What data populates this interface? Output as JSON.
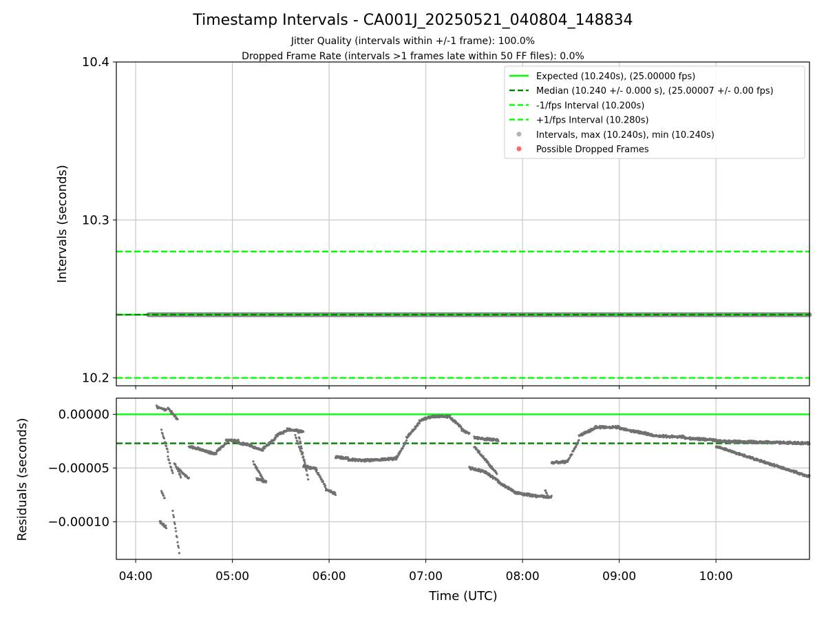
{
  "chart_data": [
    {
      "type": "line",
      "title": "Timestamp Intervals - CA001J_20250521_040804_148834",
      "subtitle_lines": [
        "Jitter Quality (intervals within +/-1 frame): 100.0%",
        "Dropped Frame Rate (intervals >1 frames late within 50 FF files): 0.0%"
      ],
      "ylabel": "Intervals (seconds)",
      "ylim": [
        10.195,
        10.4
      ],
      "yticks": [
        "10.2",
        "10.3",
        "10.4"
      ],
      "ytick_values": [
        10.2,
        10.3,
        10.4
      ],
      "grid": true,
      "legend_position": "top-right",
      "legend": [
        {
          "label": "Expected (10.240s), (25.00000 fps)",
          "style": "solid",
          "color": "#00ff00"
        },
        {
          "label": "Median (10.240 +/- 0.000 s), (25.00007 +/- 0.00 fps)",
          "style": "dashed",
          "color": "#008000"
        },
        {
          "label": "-1/fps Interval (10.200s)",
          "style": "dashed",
          "color": "#00ff00"
        },
        {
          "label": "+1/fps Interval (10.280s)",
          "style": "dashed",
          "color": "#00ff00"
        },
        {
          "label": "Intervals, max (10.240s), min (10.240s)",
          "style": "marker",
          "color": "#808080"
        },
        {
          "label": "Possible Dropped Frames",
          "style": "marker",
          "color": "#ff0000"
        }
      ],
      "lines": [
        {
          "y": 10.24,
          "style": "solid",
          "color": "#00ff00"
        },
        {
          "y": 10.24,
          "style": "dashed",
          "color": "#008000"
        },
        {
          "y": 10.2,
          "style": "dashed",
          "color": "#00ff00"
        },
        {
          "y": 10.28,
          "style": "dashed",
          "color": "#00ff00"
        }
      ],
      "intervals": {
        "x_start": "04:08",
        "x_end": "10:58",
        "y": 10.24,
        "color": "#808080"
      }
    },
    {
      "type": "scatter",
      "ylabel": "Residuals (seconds)",
      "xlabel": "Time (UTC)",
      "ylim": [
        -0.000135,
        1.5e-05
      ],
      "xlim": [
        "03:48",
        "10:58"
      ],
      "yticks": [
        "0.00000",
        "−0.00005",
        "−0.00010"
      ],
      "ytick_values": [
        0.0,
        -5e-05,
        -0.0001
      ],
      "xticks": [
        "04:00",
        "05:00",
        "06:00",
        "07:00",
        "08:00",
        "09:00",
        "10:00"
      ],
      "grid": true,
      "lines": [
        {
          "y": 0.0,
          "style": "solid",
          "color": "#00ff00"
        },
        {
          "y": -2.7e-05,
          "style": "dashed",
          "color": "#008000"
        }
      ],
      "points_color": "#707070",
      "segments": [
        {
          "t0": "04:13",
          "t1": "04:19",
          "y0": 7e-06,
          "y1": 4e-06
        },
        {
          "t0": "04:20",
          "t1": "04:26",
          "y0": 6e-06,
          "y1": -5e-06
        },
        {
          "t0": "04:16",
          "t1": "04:20",
          "y0": -1.5e-05,
          "y1": -3.5e-05
        },
        {
          "t0": "04:15",
          "t1": "04:19",
          "y0": -0.0001,
          "y1": -0.000105
        },
        {
          "t0": "04:16",
          "t1": "04:18",
          "y0": -7.2e-05,
          "y1": -7.8e-05
        },
        {
          "t0": "04:20",
          "t1": "04:23",
          "y0": -4e-05,
          "y1": -5.5e-05
        },
        {
          "t0": "04:23",
          "t1": "04:27",
          "y0": -9e-05,
          "y1": -0.000128
        },
        {
          "t0": "04:24",
          "t1": "04:28",
          "y0": -4.5e-05,
          "y1": -5.8e-05
        },
        {
          "t0": "04:26",
          "t1": "04:33",
          "y0": -5e-05,
          "y1": -6e-05
        },
        {
          "t0": "04:33",
          "t1": "04:42",
          "y0": -3e-05,
          "y1": -3.3e-05
        },
        {
          "t0": "04:42",
          "t1": "04:50",
          "y0": -3.4e-05,
          "y1": -3.7e-05
        },
        {
          "t0": "04:50",
          "t1": "04:56",
          "y0": -3.5e-05,
          "y1": -2.7e-05
        },
        {
          "t0": "04:56",
          "t1": "05:04",
          "y0": -2.4e-05,
          "y1": -2.5e-05
        },
        {
          "t0": "05:04",
          "t1": "05:12",
          "y0": -2.7e-05,
          "y1": -2.9e-05
        },
        {
          "t0": "05:12",
          "t1": "05:19",
          "y0": -3e-05,
          "y1": -3.4e-05
        },
        {
          "t0": "05:13",
          "t1": "05:19",
          "y0": -4.5e-05,
          "y1": -6e-05
        },
        {
          "t0": "05:15",
          "t1": "05:21",
          "y0": -6e-05,
          "y1": -6.3e-05
        },
        {
          "t0": "05:19",
          "t1": "05:27",
          "y0": -3.2e-05,
          "y1": -2.2e-05
        },
        {
          "t0": "05:27",
          "t1": "05:34",
          "y0": -2e-05,
          "y1": -1.5e-05
        },
        {
          "t0": "05:34",
          "t1": "05:44",
          "y0": -1.4e-05,
          "y1": -1.6e-05
        },
        {
          "t0": "05:39",
          "t1": "05:45",
          "y0": -2e-05,
          "y1": -4.5e-05
        },
        {
          "t0": "05:41",
          "t1": "05:47",
          "y0": -1.8e-05,
          "y1": -6e-05
        },
        {
          "t0": "05:44",
          "t1": "05:52",
          "y0": -4.8e-05,
          "y1": -5.1e-05
        },
        {
          "t0": "05:52",
          "t1": "05:58",
          "y0": -5.2e-05,
          "y1": -6.8e-05
        },
        {
          "t0": "05:58",
          "t1": "06:04",
          "y0": -7e-05,
          "y1": -7.4e-05
        },
        {
          "t0": "06:04",
          "t1": "06:12",
          "y0": -4e-05,
          "y1": -4.1e-05
        },
        {
          "t0": "06:12",
          "t1": "06:22",
          "y0": -4.2e-05,
          "y1": -4.3e-05
        },
        {
          "t0": "06:22",
          "t1": "06:35",
          "y0": -4.3e-05,
          "y1": -4.2e-05
        },
        {
          "t0": "06:35",
          "t1": "06:42",
          "y0": -4.2e-05,
          "y1": -4.1e-05
        },
        {
          "t0": "06:42",
          "t1": "06:48",
          "y0": -4e-05,
          "y1": -2.5e-05
        },
        {
          "t0": "06:48",
          "t1": "06:56",
          "y0": -2.2e-05,
          "y1": -8e-06
        },
        {
          "t0": "06:56",
          "t1": "07:04",
          "y0": -6e-06,
          "y1": -2e-06
        },
        {
          "t0": "07:04",
          "t1": "07:15",
          "y0": -2e-06,
          "y1": -2e-06
        },
        {
          "t0": "07:15",
          "t1": "07:22",
          "y0": -3e-06,
          "y1": -1.2e-05
        },
        {
          "t0": "07:22",
          "t1": "07:27",
          "y0": -1.4e-05,
          "y1": -1.8e-05
        },
        {
          "t0": "07:30",
          "t1": "07:45",
          "y0": -2.2e-05,
          "y1": -2.4e-05
        },
        {
          "t0": "07:27",
          "t1": "07:35",
          "y0": -5e-05,
          "y1": -5.3e-05
        },
        {
          "t0": "07:30",
          "t1": "07:44",
          "y0": -3e-05,
          "y1": -5.5e-05
        },
        {
          "t0": "07:35",
          "t1": "07:45",
          "y0": -5.2e-05,
          "y1": -6.2e-05
        },
        {
          "t0": "07:45",
          "t1": "07:55",
          "y0": -6.3e-05,
          "y1": -7.2e-05
        },
        {
          "t0": "07:55",
          "t1": "08:08",
          "y0": -7.3e-05,
          "y1": -7.6e-05
        },
        {
          "t0": "08:08",
          "t1": "08:18",
          "y0": -7.6e-05,
          "y1": -7.7e-05
        },
        {
          "t0": "08:14",
          "t1": "08:16",
          "y0": -7e-05,
          "y1": -7.7e-05
        },
        {
          "t0": "08:18",
          "t1": "08:28",
          "y0": -4.5e-05,
          "y1": -4.4e-05
        },
        {
          "t0": "08:28",
          "t1": "08:35",
          "y0": -4.4e-05,
          "y1": -2.4e-05
        },
        {
          "t0": "08:35",
          "t1": "08:45",
          "y0": -2e-05,
          "y1": -1.3e-05
        },
        {
          "t0": "08:45",
          "t1": "09:00",
          "y0": -1.2e-05,
          "y1": -1.2e-05
        },
        {
          "t0": "09:00",
          "t1": "09:20",
          "y0": -1.3e-05,
          "y1": -1.9e-05
        },
        {
          "t0": "09:20",
          "t1": "09:40",
          "y0": -2e-05,
          "y1": -2.1e-05
        },
        {
          "t0": "09:40",
          "t1": "10:00",
          "y0": -2.2e-05,
          "y1": -2.4e-05
        },
        {
          "t0": "10:00",
          "t1": "10:58",
          "y0": -2.5e-05,
          "y1": -2.7e-05
        },
        {
          "t0": "10:00",
          "t1": "10:58",
          "y0": -3e-05,
          "y1": -5.8e-05
        }
      ]
    }
  ]
}
